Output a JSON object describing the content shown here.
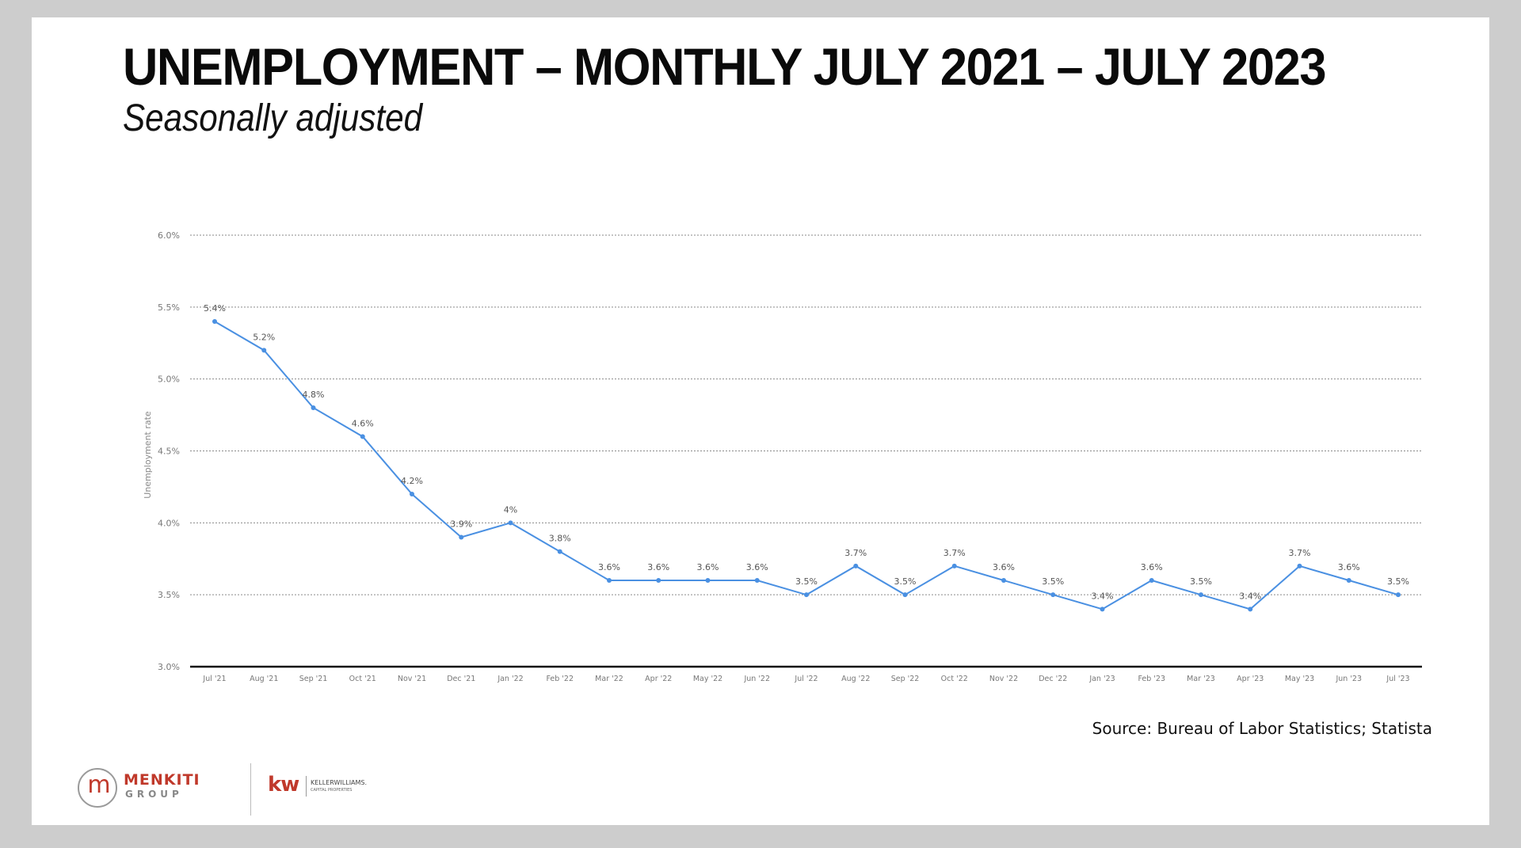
{
  "slide": {
    "title": "UNEMPLOYMENT – MONTHLY JULY 2021 – JULY 2023",
    "subtitle": "Seasonally adjusted",
    "source": "Source: Bureau of Labor Statistics; Statista"
  },
  "logos": {
    "menkiti_mark": "m",
    "menkiti_name": "MENKITI",
    "menkiti_group": "GROUP",
    "kw_mark": "kw",
    "kw_name": "KELLERWILLIAMS.",
    "kw_sub": "CAPITAL PROPERTIES"
  },
  "chart_data": {
    "type": "line",
    "title": "UNEMPLOYMENT – MONTHLY JULY 2021 – JULY 2023",
    "subtitle": "Seasonally adjusted",
    "xlabel": "",
    "ylabel": "Unemployment rate",
    "ylim": [
      3.0,
      6.0
    ],
    "yticks": [
      3.0,
      3.5,
      4.0,
      4.5,
      5.0,
      5.5,
      6.0
    ],
    "ytick_labels": [
      "3.0%",
      "3.5%",
      "4.0%",
      "4.5%",
      "5.0%",
      "5.5%",
      "6.0%"
    ],
    "grid": true,
    "line_color": "#4a90e2",
    "categories": [
      "Jul '21",
      "Aug '21",
      "Sep '21",
      "Oct '21",
      "Nov '21",
      "Dec '21",
      "Jan '22",
      "Feb '22",
      "Mar '22",
      "Apr '22",
      "May '22",
      "Jun '22",
      "Jul '22",
      "Aug '22",
      "Sep '22",
      "Oct '22",
      "Nov '22",
      "Dec '22",
      "Jan '23",
      "Feb '23",
      "Mar '23",
      "Apr '23",
      "May '23",
      "Jun '23",
      "Jul '23"
    ],
    "values": [
      5.4,
      5.2,
      4.8,
      4.6,
      4.2,
      3.9,
      4.0,
      3.8,
      3.6,
      3.6,
      3.6,
      3.6,
      3.5,
      3.7,
      3.5,
      3.7,
      3.6,
      3.5,
      3.4,
      3.6,
      3.5,
      3.4,
      3.7,
      3.6,
      3.5
    ],
    "data_labels": [
      "5.4%",
      "5.2%",
      "4.8%",
      "4.6%",
      "4.2%",
      "3.9%",
      "4%",
      "3.8%",
      "3.6%",
      "3.6%",
      "3.6%",
      "3.6%",
      "3.5%",
      "3.7%",
      "3.5%",
      "3.7%",
      "3.6%",
      "3.5%",
      "3.4%",
      "3.6%",
      "3.5%",
      "3.4%",
      "3.7%",
      "3.6%",
      "3.5%"
    ]
  }
}
